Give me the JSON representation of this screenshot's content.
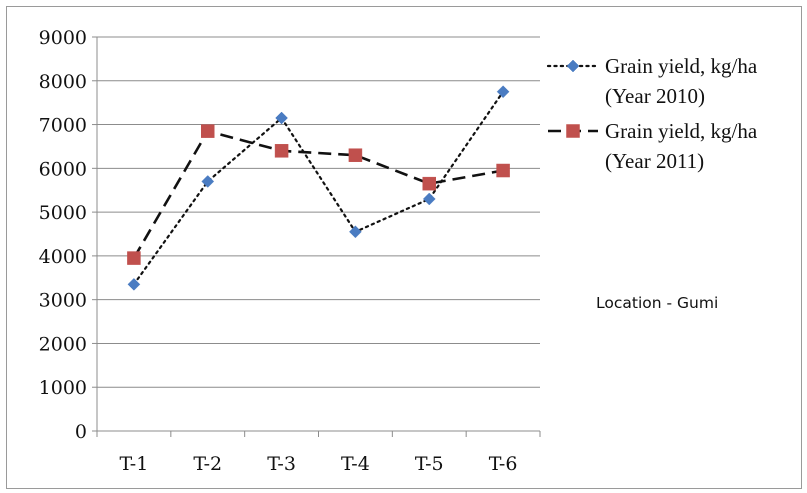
{
  "chart_data": {
    "type": "line",
    "title": "",
    "xlabel": "",
    "ylabel": "",
    "categories": [
      "T-1",
      "T-2",
      "T-3",
      "T-4",
      "T-5",
      "T-6"
    ],
    "ylim": [
      0,
      9000
    ],
    "yticks": [
      0,
      1000,
      2000,
      3000,
      4000,
      5000,
      6000,
      7000,
      8000,
      9000
    ],
    "grid": "horizontal",
    "legend_position": "right",
    "series": [
      {
        "name_line1": "Grain yield, kg/ha",
        "name_line2": "(Year 2010)",
        "values": [
          3350,
          5700,
          7150,
          4550,
          5300,
          7750
        ],
        "line_style": "dotted",
        "marker": "diamond",
        "marker_color": "#4a7cc2",
        "line_color": "#111111"
      },
      {
        "name_line1": "Grain yield, kg/ha",
        "name_line2": "(Year 2011)",
        "values": [
          3950,
          6850,
          6400,
          6300,
          5650,
          5950
        ],
        "line_style": "dashed",
        "marker": "square",
        "marker_color": "#c0504d",
        "line_color": "#111111"
      }
    ],
    "annotations": [
      "Location - Gumi"
    ]
  }
}
